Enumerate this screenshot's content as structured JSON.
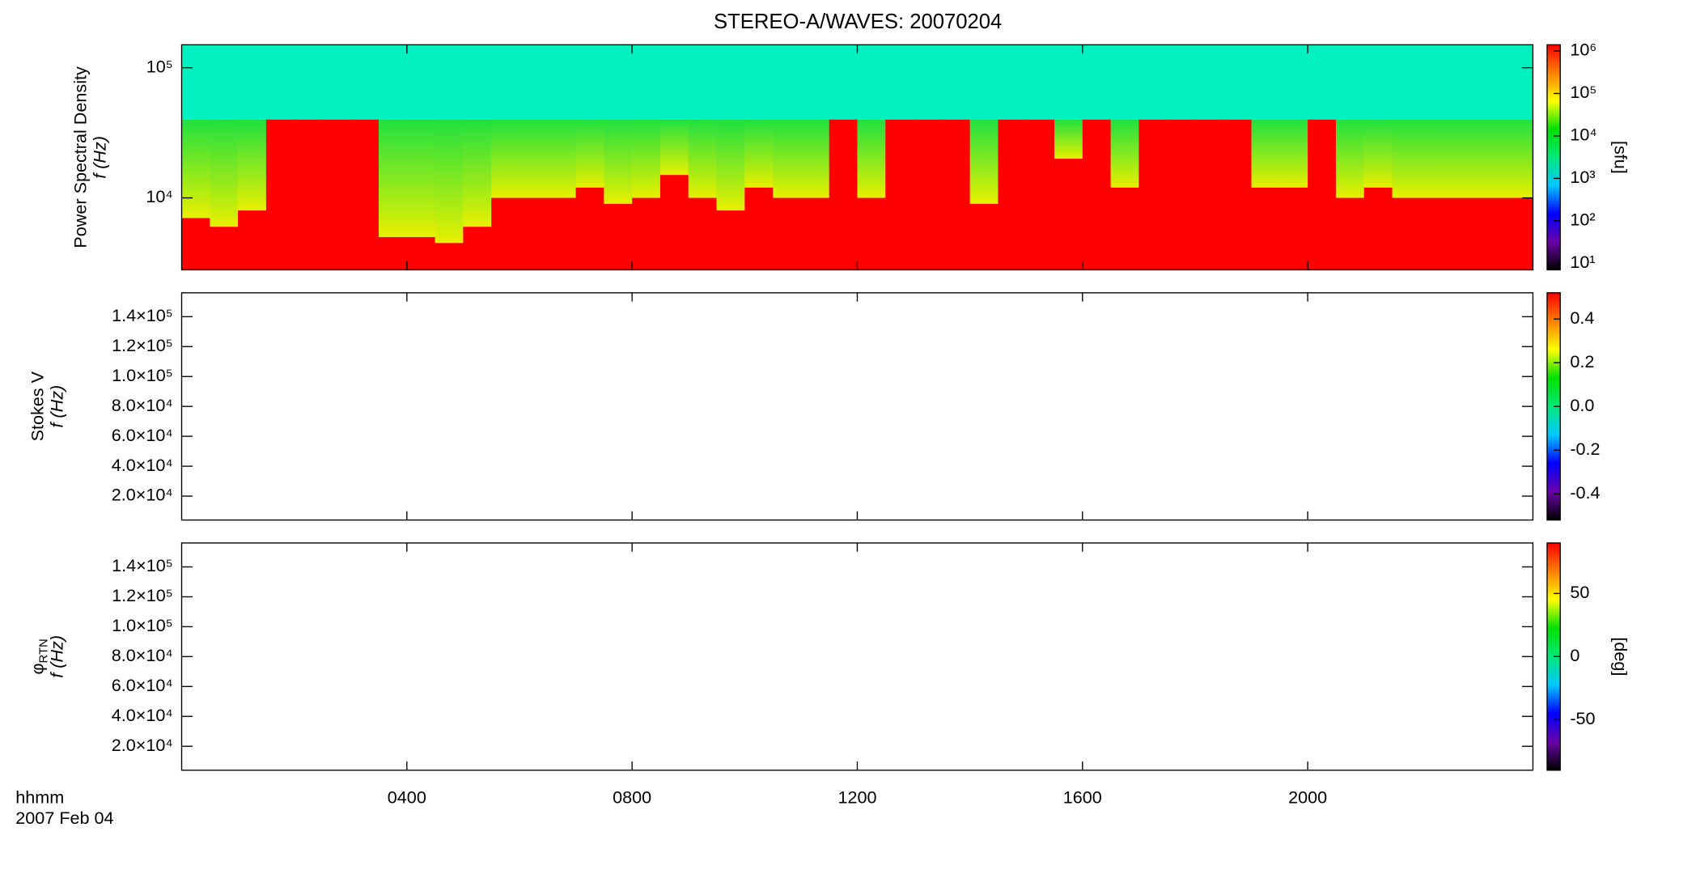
{
  "title": "STEREO-A/WAVES: 20070204",
  "x_axis": {
    "label": "hhmm",
    "date": "2007 Feb 04",
    "xlim": [
      0,
      24
    ],
    "xticks": [
      {
        "value": 4,
        "label": "0400"
      },
      {
        "value": 8,
        "label": "0800"
      },
      {
        "value": 12,
        "label": "1200"
      },
      {
        "value": 16,
        "label": "1600"
      },
      {
        "value": 20,
        "label": "2000"
      }
    ]
  },
  "colormap": [
    "#000000",
    "#6a00a8",
    "#0000ff",
    "#00c8ff",
    "#00e87a",
    "#00e000",
    "#ffff00",
    "#ff8000",
    "#ff0000"
  ],
  "chart_data": [
    {
      "type": "spectrogram",
      "ylabel": "Power Spectral Density",
      "ylabel_unit": "f (Hz)",
      "log_y": true,
      "ylim": [
        2800,
        150000
      ],
      "yticks": [
        {
          "value": 10000,
          "label": "10⁴"
        },
        {
          "value": 100000,
          "label": "10⁵"
        }
      ],
      "x": [
        0,
        0.5,
        1,
        1.5,
        2,
        2.5,
        3,
        3.5,
        4,
        4.5,
        5,
        5.5,
        6,
        6.5,
        7,
        7.5,
        8,
        8.5,
        9,
        9.5,
        10,
        10.5,
        11,
        11.5,
        12,
        12.5,
        13,
        13.5,
        14,
        14.5,
        15,
        15.5,
        16,
        16.5,
        17,
        17.5,
        18,
        18.5,
        19,
        19.5,
        20,
        20.5,
        21,
        21.5,
        22,
        22.5,
        23,
        23.5
      ],
      "values": [
        7000,
        6000,
        8000,
        40000,
        40000,
        40000,
        40000,
        5000,
        5000,
        4500,
        6000,
        10000,
        10000,
        10000,
        12000,
        9000,
        10000,
        15000,
        10000,
        8000,
        12000,
        10000,
        10000,
        40000,
        10000,
        40000,
        40000,
        40000,
        9000,
        40000,
        40000,
        20000,
        40000,
        12000,
        40000,
        40000,
        40000,
        40000,
        12000,
        12000,
        40000,
        10000,
        12000,
        10000,
        10000,
        10000,
        10000,
        10000
      ],
      "band_edge": 40000,
      "colors": {
        "strong": "#ff0000",
        "mid": "#e8f000",
        "weak": "#20e040",
        "background": "#00f0c0"
      },
      "clog": true,
      "clim": [
        7,
        1400000
      ],
      "cticks": [
        {
          "value": 10,
          "label": "10¹"
        },
        {
          "value": 100,
          "label": "10²"
        },
        {
          "value": 1000,
          "label": "10³"
        },
        {
          "value": 10000,
          "label": "10⁴"
        },
        {
          "value": 100000,
          "label": "10⁵"
        },
        {
          "value": 1000000,
          "label": "10⁶"
        }
      ],
      "colorbar_label": "[sfu]"
    },
    {
      "type": "spectrogram",
      "ylabel": "Stokes V",
      "ylabel_unit": "f (Hz)",
      "log_y": false,
      "ylim": [
        4000,
        156000
      ],
      "yticks": [
        {
          "value": 20000,
          "label": "2.0×10⁴"
        },
        {
          "value": 40000,
          "label": "4.0×10⁴"
        },
        {
          "value": 60000,
          "label": "6.0×10⁴"
        },
        {
          "value": 80000,
          "label": "8.0×10⁴"
        },
        {
          "value": 100000,
          "label": "1.0×10⁵"
        },
        {
          "value": 120000,
          "label": "1.2×10⁵"
        },
        {
          "value": 140000,
          "label": "1.4×10⁵"
        }
      ],
      "clog": false,
      "clim": [
        -0.52,
        0.52
      ],
      "cticks": [
        -0.4,
        -0.2,
        {
          "value": 0,
          "label": "0.0"
        },
        0.2,
        0.4
      ]
    },
    {
      "type": "spectrogram",
      "ylabel": "φ",
      "ylabel_sub": "RTN",
      "ylabel_unit": "f (Hz)",
      "log_y": false,
      "ylim": [
        4000,
        156000
      ],
      "yticks": [
        {
          "value": 20000,
          "label": "2.0×10⁴"
        },
        {
          "value": 40000,
          "label": "4.0×10⁴"
        },
        {
          "value": 60000,
          "label": "6.0×10⁴"
        },
        {
          "value": 80000,
          "label": "8.0×10⁴"
        },
        {
          "value": 100000,
          "label": "1.0×10⁵"
        },
        {
          "value": 120000,
          "label": "1.2×10⁵"
        },
        {
          "value": 140000,
          "label": "1.4×10⁵"
        }
      ],
      "clog": false,
      "clim": [
        -90,
        90
      ],
      "cticks": [
        -50,
        0,
        50
      ],
      "colorbar_label": "[deg]"
    }
  ]
}
